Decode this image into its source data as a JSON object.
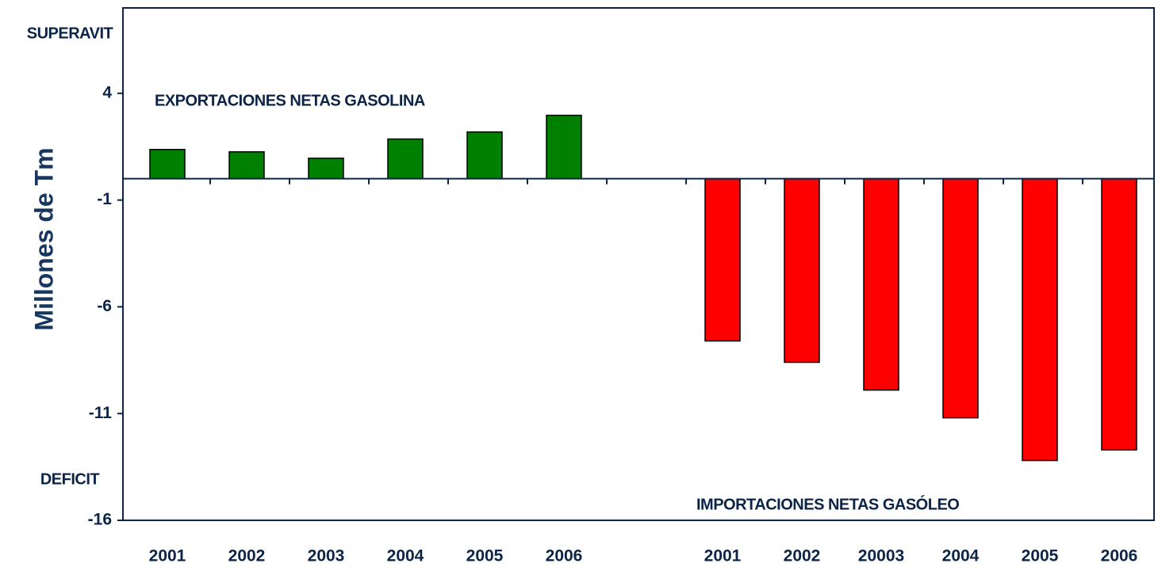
{
  "chart_data": {
    "type": "bar",
    "y_label": "Millones de Tm",
    "annotations": [
      "SUPERAVIT",
      "DEFICIT"
    ],
    "categories": [
      "2001",
      "2002",
      "2003",
      "2004",
      "2005",
      "2006",
      null,
      "2001",
      "2002",
      "20003",
      "2004",
      "2005",
      "2006"
    ],
    "series": [
      {
        "name": "EXPORTACIONES NETAS GASOLINA",
        "color": "#008000",
        "values": [
          1.37,
          1.26,
          0.96,
          1.86,
          2.19,
          2.97,
          null,
          null,
          null,
          null,
          null,
          null,
          null
        ]
      },
      {
        "name": "IMPORTACIONES NETAS GASÓLEO",
        "color": "#ff0000",
        "values": [
          null,
          null,
          null,
          null,
          null,
          null,
          null,
          -7.6,
          -8.6,
          -9.9,
          -11.2,
          -13.2,
          -12.7
        ]
      }
    ],
    "ylim": [
      -16,
      8
    ],
    "yticks": [
      -16,
      -11,
      -6,
      -1,
      4
    ]
  }
}
